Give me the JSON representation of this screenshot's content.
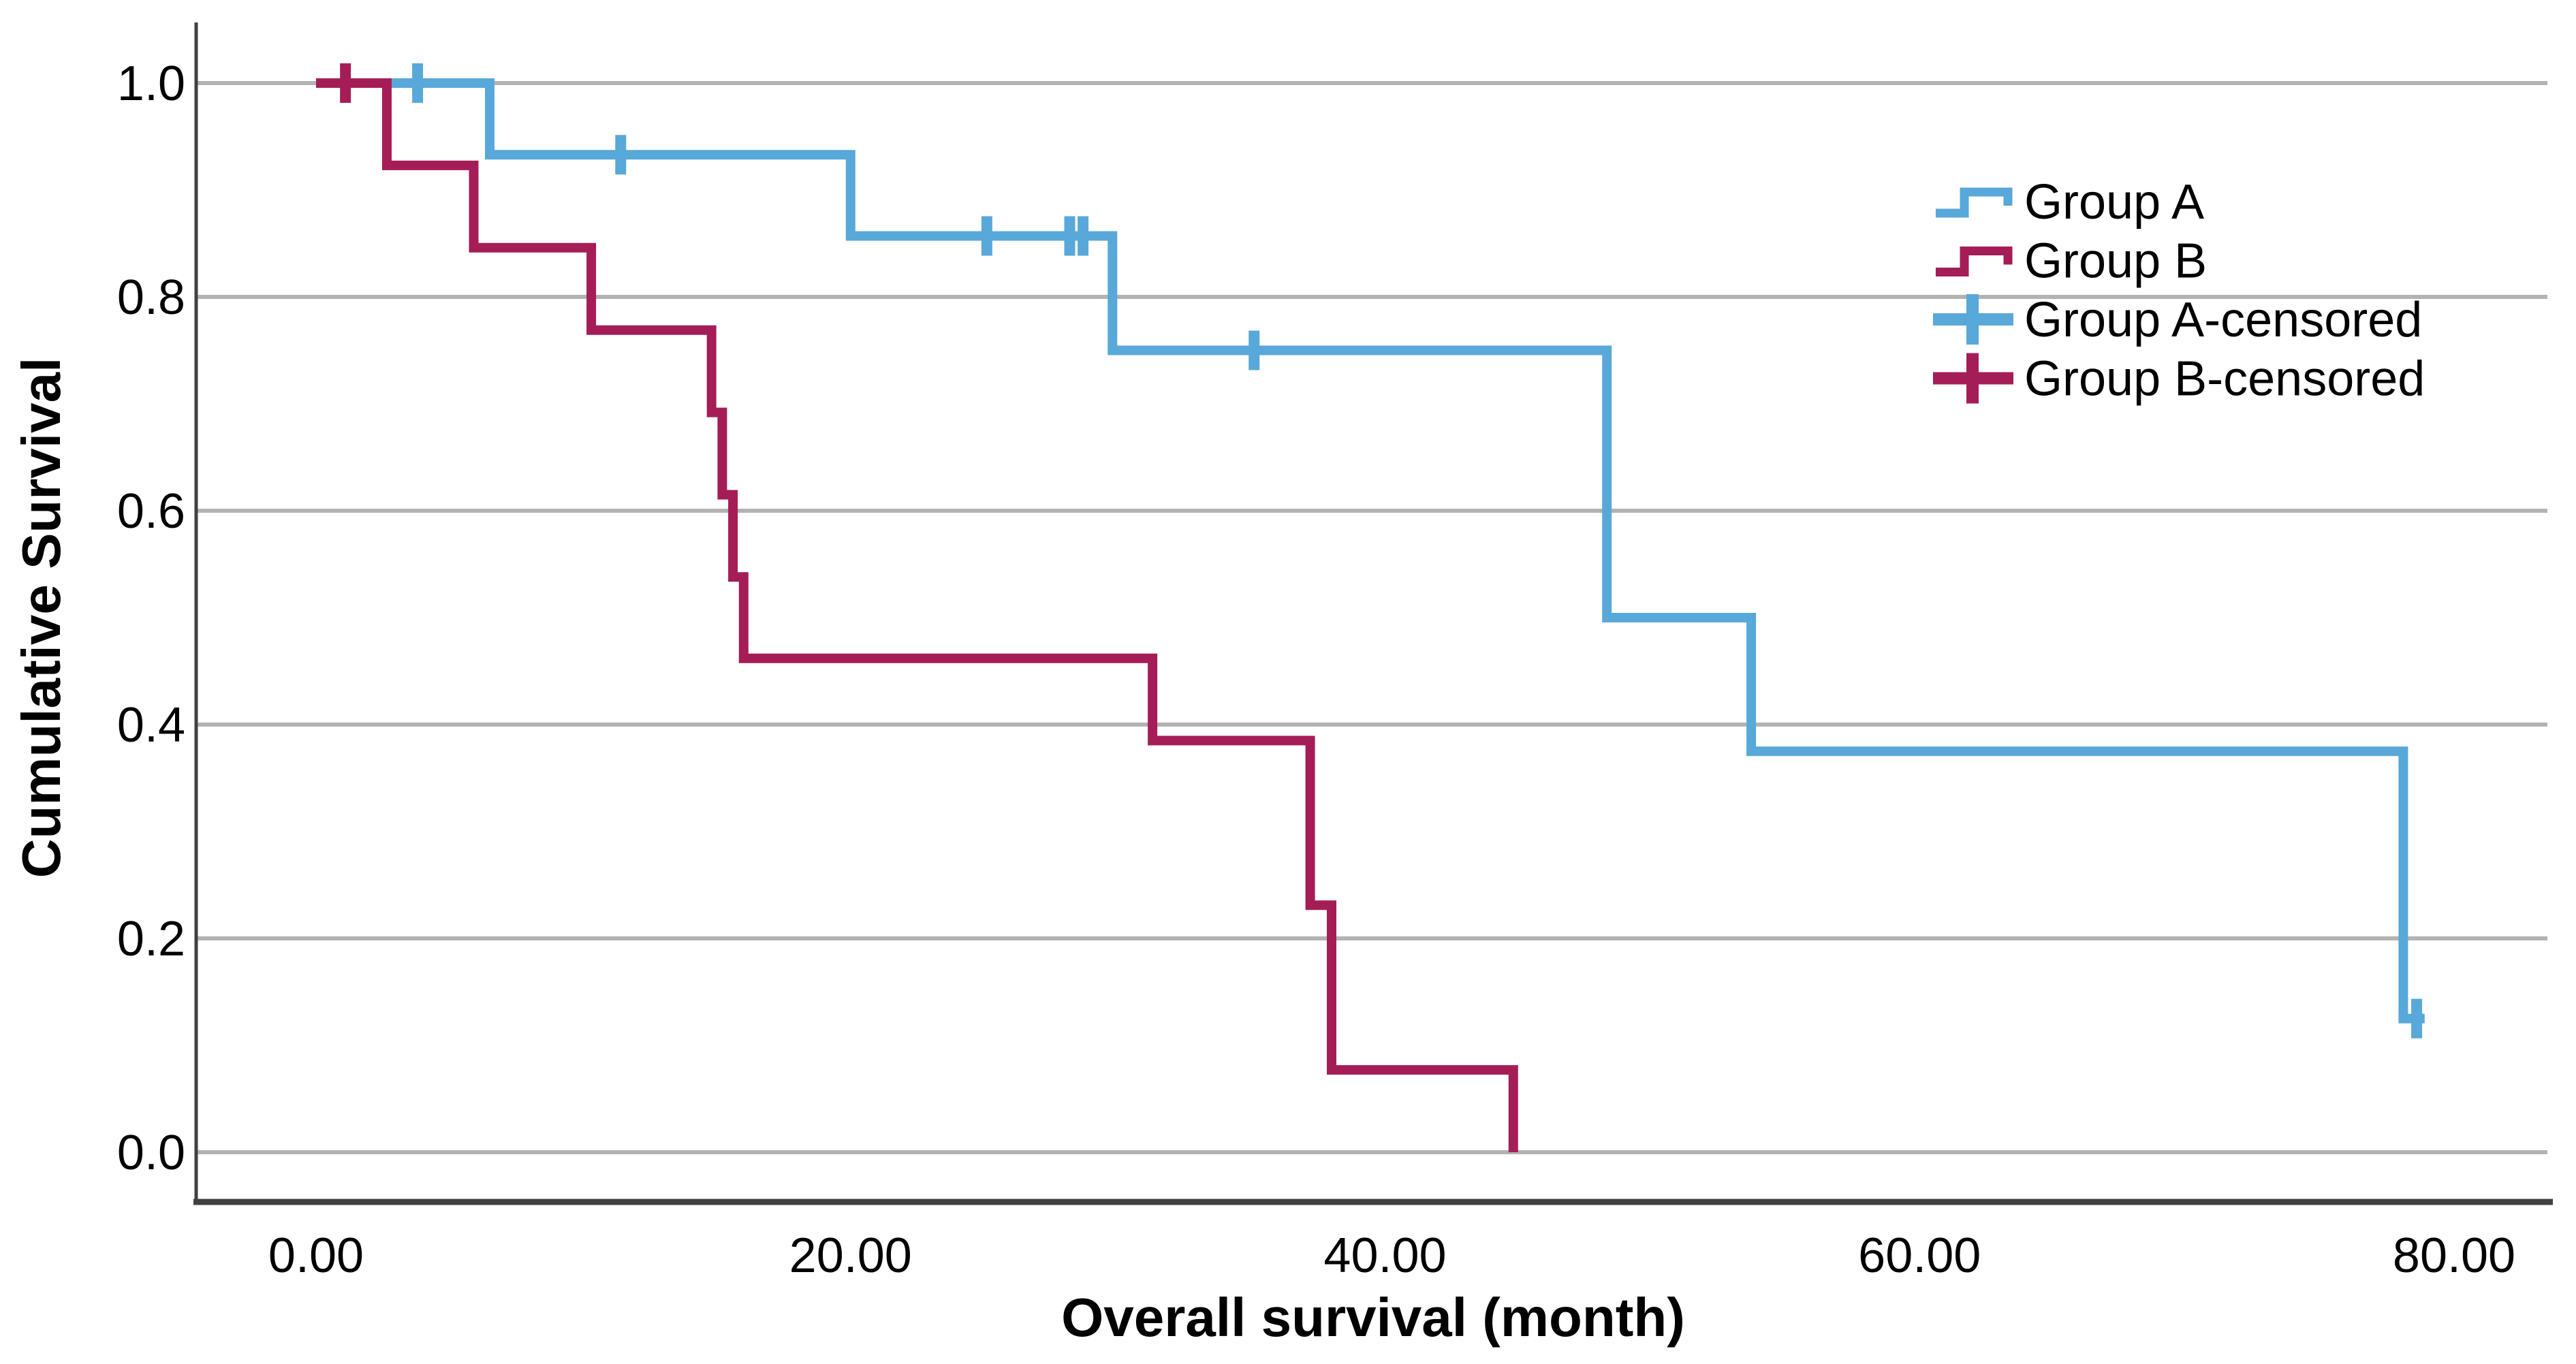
{
  "chart_data": {
    "type": "line",
    "subtype": "kaplan-meier-step-function",
    "title": "",
    "xlabel": "Overall survival (month)",
    "ylabel": "Cumulative Survival",
    "xlim": [
      0,
      80
    ],
    "ylim": [
      0.0,
      1.0
    ],
    "grid": "horizontal-only",
    "legend_position": "inside-upper-right",
    "x_ticks": [
      {
        "label": "0.00",
        "value": 0
      },
      {
        "label": "20.00",
        "value": 20
      },
      {
        "label": "40.00",
        "value": 40
      },
      {
        "label": "60.00",
        "value": 60
      },
      {
        "label": "80.00",
        "value": 80
      }
    ],
    "y_ticks": [
      {
        "label": "1.0",
        "value": 1.0
      },
      {
        "label": "0.8",
        "value": 0.8
      },
      {
        "label": "0.6",
        "value": 0.6
      },
      {
        "label": "0.4",
        "value": 0.4
      },
      {
        "label": "0.2",
        "value": 0.2
      },
      {
        "label": "0.0",
        "value": 0.0
      }
    ],
    "series": [
      {
        "name": "Group A",
        "censored_name": "Group A-censored",
        "color": "#58a8d9",
        "points": [
          [
            0,
            1.0
          ],
          [
            6.5,
            1.0
          ],
          [
            6.5,
            0.933
          ],
          [
            20,
            0.933
          ],
          [
            20,
            0.857
          ],
          [
            29.8,
            0.857
          ],
          [
            29.8,
            0.75
          ],
          [
            48.3,
            0.75
          ],
          [
            48.3,
            0.5
          ],
          [
            53.7,
            0.5
          ],
          [
            53.7,
            0.375
          ],
          [
            78.1,
            0.375
          ],
          [
            78.1,
            0.125
          ],
          [
            78.9,
            0.125
          ]
        ],
        "censored": [
          [
            3.8,
            1.0
          ],
          [
            11.4,
            0.933
          ],
          [
            25.1,
            0.857
          ],
          [
            28.2,
            0.857
          ],
          [
            28.7,
            0.857
          ],
          [
            35.1,
            0.75
          ],
          [
            78.6,
            0.125
          ]
        ]
      },
      {
        "name": "Group B",
        "censored_name": "Group B-censored",
        "color": "#a41d56",
        "points": [
          [
            0,
            1.0
          ],
          [
            2.65,
            1.0
          ],
          [
            2.65,
            0.923
          ],
          [
            5.9,
            0.923
          ],
          [
            5.9,
            0.846
          ],
          [
            10.3,
            0.846
          ],
          [
            10.3,
            0.769
          ],
          [
            14.8,
            0.769
          ],
          [
            14.8,
            0.692
          ],
          [
            15.2,
            0.692
          ],
          [
            15.2,
            0.615
          ],
          [
            15.6,
            0.615
          ],
          [
            15.6,
            0.538
          ],
          [
            16.0,
            0.538
          ],
          [
            16.0,
            0.462
          ],
          [
            31.3,
            0.462
          ],
          [
            31.3,
            0.385
          ],
          [
            37.2,
            0.385
          ],
          [
            37.2,
            0.231
          ],
          [
            38.0,
            0.231
          ],
          [
            38.0,
            0.077
          ],
          [
            44.8,
            0.077
          ],
          [
            44.8,
            0.0
          ]
        ],
        "censored": [
          [
            1.1,
            1.0
          ]
        ]
      }
    ],
    "legend": [
      {
        "label": "Group A",
        "symbol": "step",
        "series": 0
      },
      {
        "label": "Group B",
        "symbol": "step",
        "series": 1
      },
      {
        "label": "Group A-censored",
        "symbol": "plus",
        "series": 0
      },
      {
        "label": "Group B-censored",
        "symbol": "plus",
        "series": 1
      }
    ]
  },
  "colors": {
    "background": "#ffffff",
    "gridline": "#b3b3b3",
    "axis_line": "#404040",
    "text": "#000000",
    "group_a": "#58a8d9",
    "group_b": "#a41d56"
  }
}
